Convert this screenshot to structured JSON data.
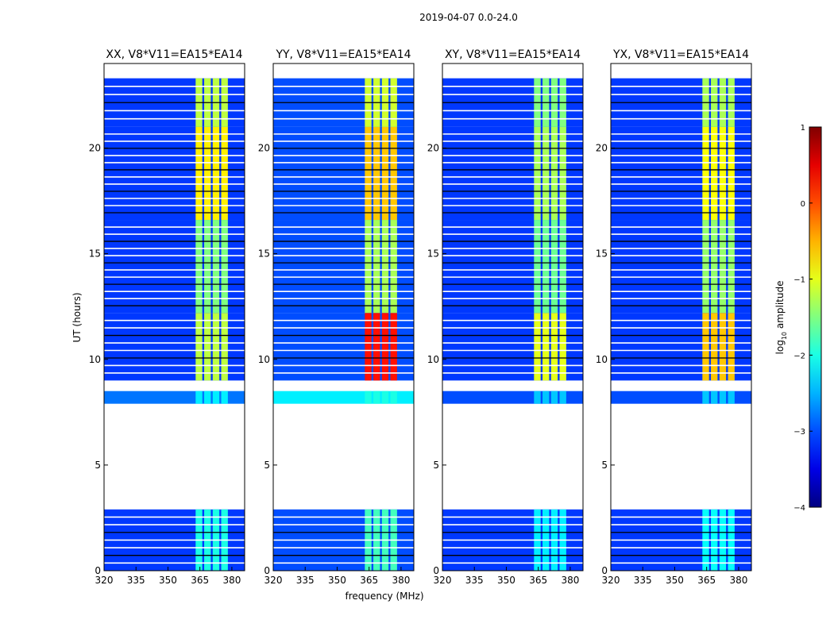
{
  "chart_data": {
    "type": "heatmap",
    "suptitle": "2019-04-07 0.0-24.0",
    "xlabel": "frequency (MHz)",
    "ylabel": "UT (hours)",
    "xlim": [
      320,
      386
    ],
    "ylim": [
      0,
      24
    ],
    "x_ticks": [
      320,
      335,
      350,
      365,
      380
    ],
    "y_ticks": [
      0,
      5,
      10,
      15,
      20
    ],
    "panels": [
      {
        "title": "XX, V8*V11=EA15*EA14",
        "rfi_band_mhz": [
          363,
          379
        ],
        "time_blocks": [
          {
            "ut": [
              0.0,
              2.9
            ],
            "background_log10": -3.1,
            "rfi_log10": -2.0
          },
          {
            "ut": [
              7.9,
              8.5
            ],
            "background_log10": -2.8,
            "rfi_log10": -2.2
          },
          {
            "ut": [
              9.0,
              12.2
            ],
            "background_log10": -3.1,
            "rfi_log10": -1.2
          },
          {
            "ut": [
              12.2,
              16.6
            ],
            "background_log10": -3.1,
            "rfi_log10": -1.5
          },
          {
            "ut": [
              16.6,
              21.0
            ],
            "background_log10": -3.1,
            "rfi_log10": -0.8
          },
          {
            "ut": [
              21.0,
              23.3
            ],
            "background_log10": -3.1,
            "rfi_log10": -1.2
          }
        ]
      },
      {
        "title": "YY, V8*V11=EA15*EA14",
        "rfi_band_mhz": [
          363,
          379
        ],
        "time_blocks": [
          {
            "ut": [
              0.0,
              2.9
            ],
            "background_log10": -3.0,
            "rfi_log10": -1.8
          },
          {
            "ut": [
              7.9,
              8.5
            ],
            "background_log10": -2.2,
            "rfi_log10": -2.0
          },
          {
            "ut": [
              9.0,
              12.2
            ],
            "background_log10": -3.0,
            "rfi_log10": 0.3
          },
          {
            "ut": [
              12.2,
              16.6
            ],
            "background_log10": -3.0,
            "rfi_log10": -1.3
          },
          {
            "ut": [
              16.6,
              21.0
            ],
            "background_log10": -3.0,
            "rfi_log10": -0.6
          },
          {
            "ut": [
              21.0,
              23.3
            ],
            "background_log10": -3.0,
            "rfi_log10": -1.1
          }
        ]
      },
      {
        "title": "XY, V8*V11=EA15*EA14",
        "rfi_band_mhz": [
          363,
          379
        ],
        "time_blocks": [
          {
            "ut": [
              0.0,
              2.9
            ],
            "background_log10": -3.1,
            "rfi_log10": -2.2
          },
          {
            "ut": [
              7.9,
              8.5
            ],
            "background_log10": -3.0,
            "rfi_log10": -2.4
          },
          {
            "ut": [
              9.0,
              12.2
            ],
            "background_log10": -3.1,
            "rfi_log10": -1.0
          },
          {
            "ut": [
              12.2,
              16.6
            ],
            "background_log10": -3.1,
            "rfi_log10": -1.6
          },
          {
            "ut": [
              16.6,
              21.0
            ],
            "background_log10": -3.1,
            "rfi_log10": -1.3
          },
          {
            "ut": [
              21.0,
              23.3
            ],
            "background_log10": -3.1,
            "rfi_log10": -1.5
          }
        ]
      },
      {
        "title": "YX, V8*V11=EA15*EA14",
        "rfi_band_mhz": [
          363,
          379
        ],
        "time_blocks": [
          {
            "ut": [
              0.0,
              2.9
            ],
            "background_log10": -3.1,
            "rfi_log10": -2.1
          },
          {
            "ut": [
              7.9,
              8.5
            ],
            "background_log10": -3.0,
            "rfi_log10": -2.4
          },
          {
            "ut": [
              9.0,
              12.2
            ],
            "background_log10": -3.1,
            "rfi_log10": -0.6
          },
          {
            "ut": [
              12.2,
              16.6
            ],
            "background_log10": -3.1,
            "rfi_log10": -1.4
          },
          {
            "ut": [
              16.6,
              21.0
            ],
            "background_log10": -3.1,
            "rfi_log10": -0.9
          },
          {
            "ut": [
              21.0,
              23.3
            ],
            "background_log10": -3.1,
            "rfi_log10": -1.3
          }
        ]
      }
    ],
    "colorbar": {
      "label_prefix": "log",
      "label_subscript": "10",
      "label_suffix": " amplitude",
      "range": [
        -4,
        1
      ],
      "ticks": [
        "1",
        "0",
        "−1",
        "−2",
        "−3",
        "−4"
      ],
      "colormap": "jet"
    }
  }
}
